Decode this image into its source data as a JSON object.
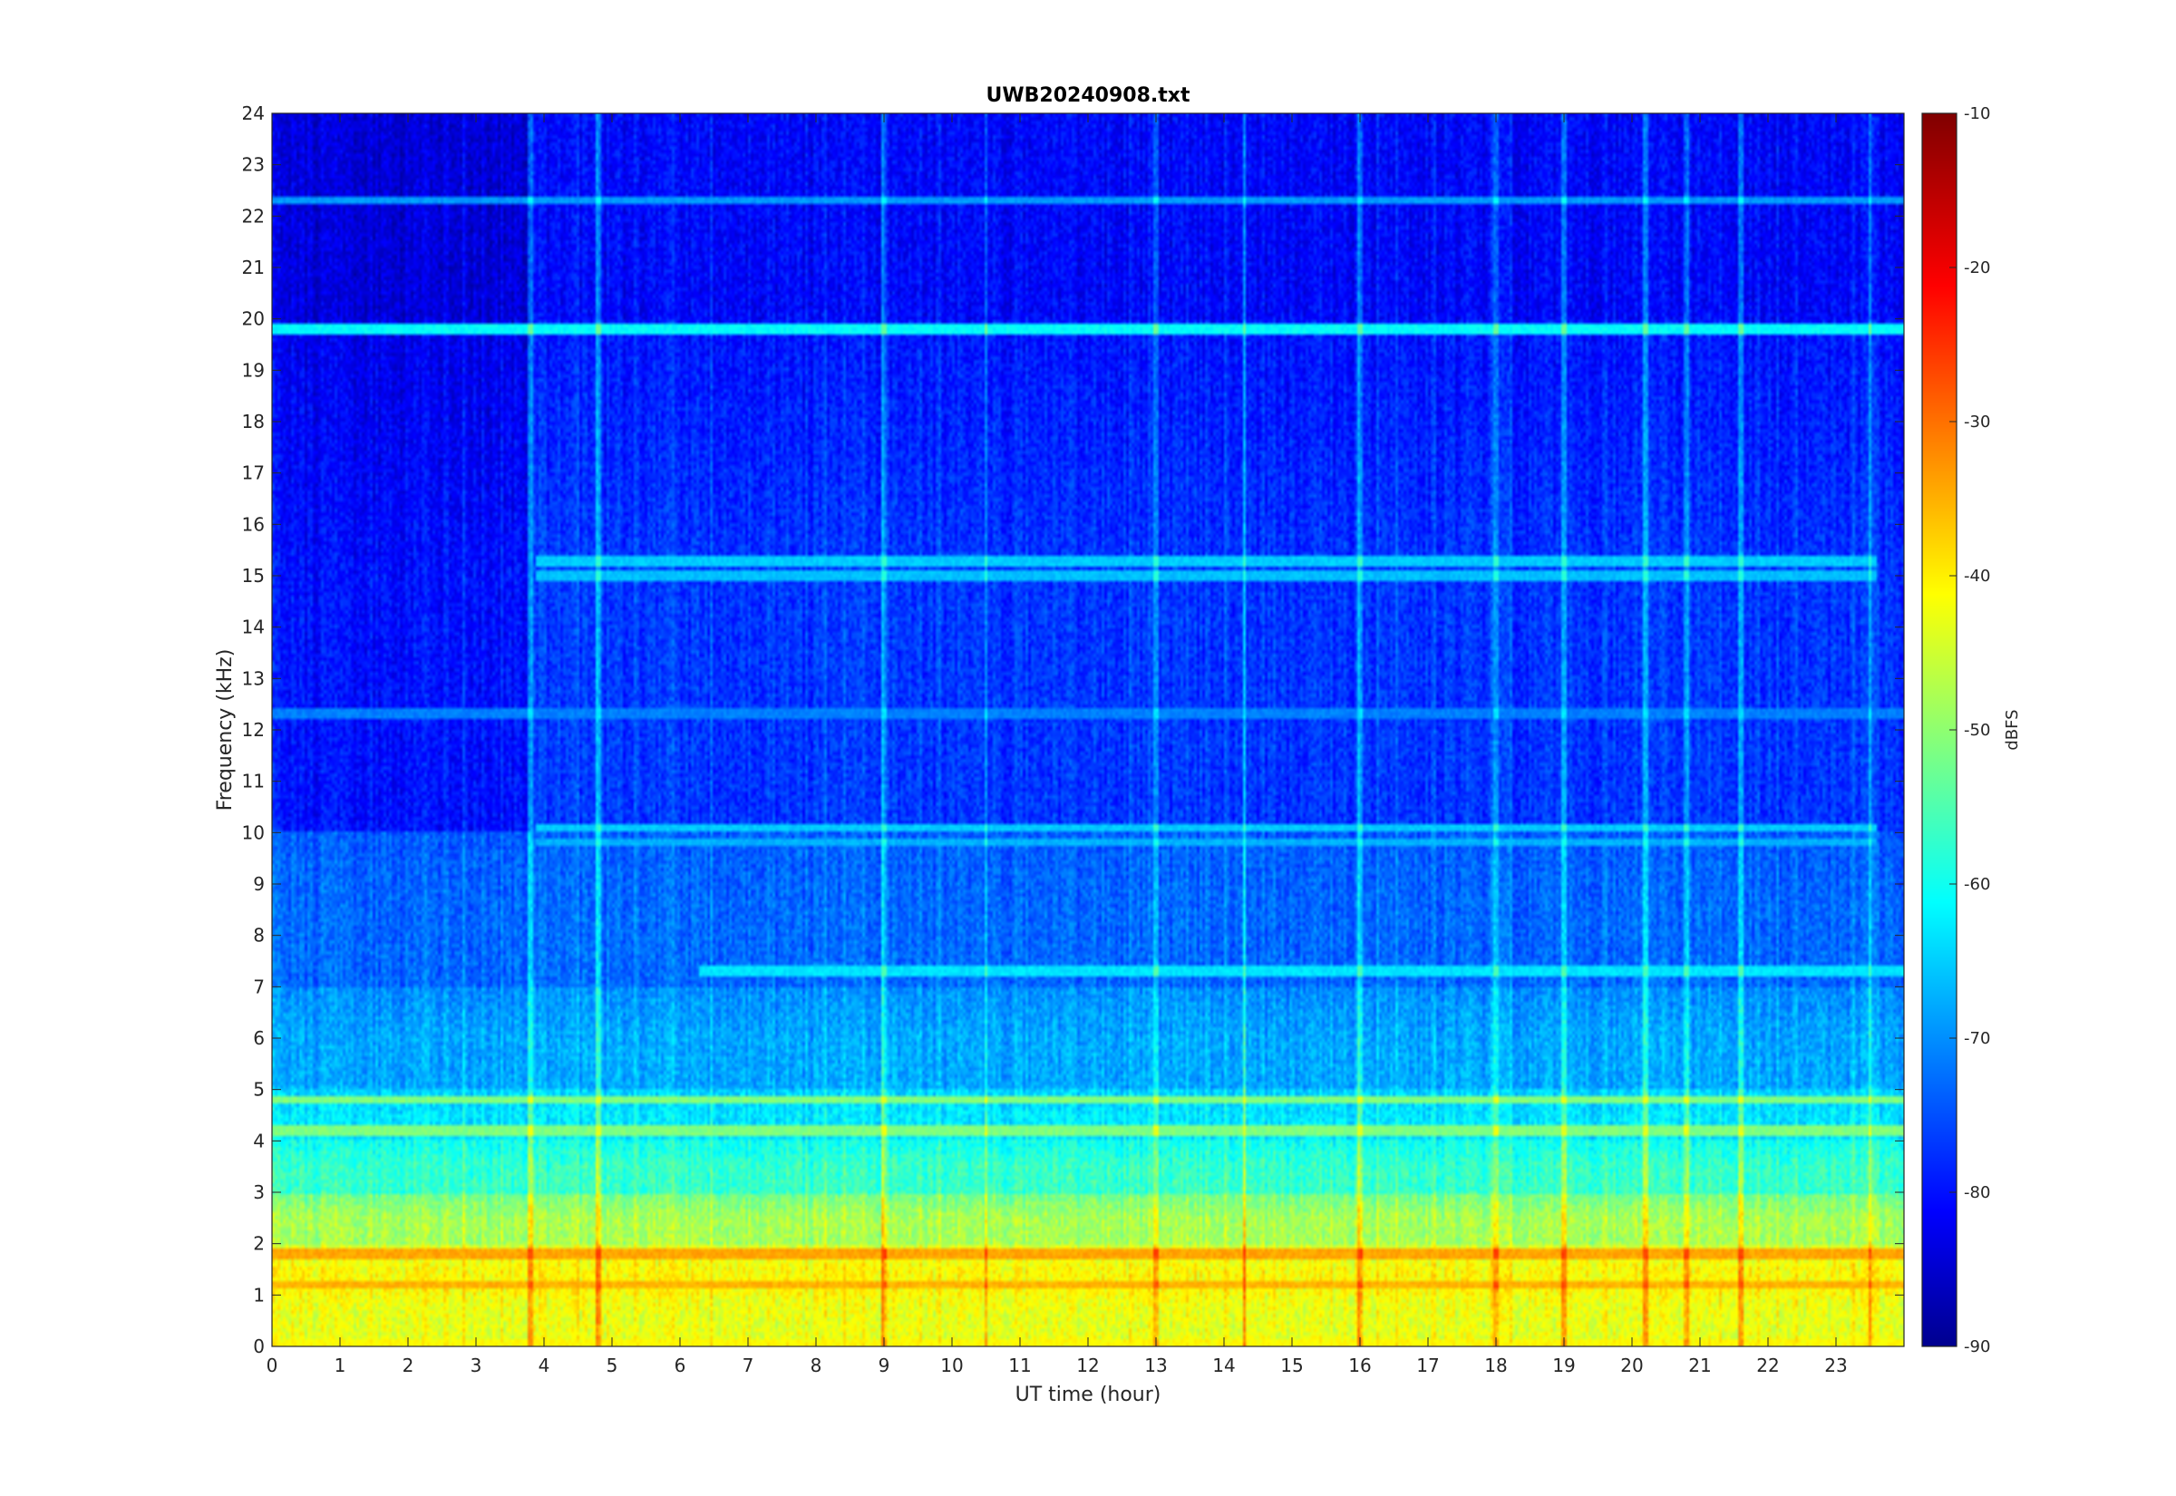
{
  "chart_data": {
    "type": "heatmap",
    "title": "UWB20240908.txt",
    "xlabel": "UT time (hour)",
    "ylabel": "Frequency (kHz)",
    "xlim": [
      0,
      24
    ],
    "ylim": [
      0,
      24
    ],
    "x_ticks": [
      0,
      1,
      2,
      3,
      4,
      5,
      6,
      7,
      8,
      9,
      10,
      11,
      12,
      13,
      14,
      15,
      16,
      17,
      18,
      19,
      20,
      21,
      22,
      23
    ],
    "y_ticks": [
      0,
      1,
      2,
      3,
      4,
      5,
      6,
      7,
      8,
      9,
      10,
      11,
      12,
      13,
      14,
      15,
      16,
      17,
      18,
      19,
      20,
      21,
      22,
      23,
      24
    ],
    "colorbar": {
      "label": "dBFS",
      "range": [
        -90,
        -10
      ],
      "ticks": [
        -90,
        -80,
        -70,
        -60,
        -50,
        -40,
        -30,
        -20,
        -10
      ],
      "colormap": "jet"
    },
    "colormap_colors": [
      "#00008f",
      "#0000ff",
      "#00ffff",
      "#ffff00",
      "#ff0000",
      "#800000"
    ],
    "background_levels_dbfs": [
      {
        "freq_khz": [
          0,
          1
        ],
        "level": -42
      },
      {
        "freq_khz": [
          1,
          2
        ],
        "level": -40
      },
      {
        "freq_khz": [
          2,
          3
        ],
        "level": -47
      },
      {
        "freq_khz": [
          3,
          4
        ],
        "level": -56
      },
      {
        "freq_khz": [
          4,
          5
        ],
        "level": -62
      },
      {
        "freq_khz": [
          5,
          7
        ],
        "level": -67
      },
      {
        "freq_khz": [
          7,
          10
        ],
        "level": -72
      },
      {
        "freq_khz": [
          10,
          20
        ],
        "level": -76
      },
      {
        "freq_khz": [
          20,
          24
        ],
        "level": -80
      }
    ],
    "persistent_lines": [
      {
        "freq_khz": 19.8,
        "level": -60,
        "t_start": 0,
        "t_end": 24
      },
      {
        "freq_khz": 22.3,
        "level": -68,
        "t_start": 0,
        "t_end": 24
      },
      {
        "freq_khz": 15.3,
        "level": -64,
        "t_start": 3.9,
        "t_end": 23.6
      },
      {
        "freq_khz": 15.0,
        "level": -65,
        "t_start": 3.9,
        "t_end": 23.6
      },
      {
        "freq_khz": 10.1,
        "level": -64,
        "t_start": 3.9,
        "t_end": 23.6
      },
      {
        "freq_khz": 9.8,
        "level": -66,
        "t_start": 3.9,
        "t_end": 23.6
      },
      {
        "freq_khz": 12.3,
        "level": -70,
        "t_start": 0,
        "t_end": 24
      },
      {
        "freq_khz": 7.3,
        "level": -62,
        "t_start": 6.3,
        "t_end": 24
      },
      {
        "freq_khz": 4.8,
        "level": -50,
        "t_start": 0,
        "t_end": 24
      },
      {
        "freq_khz": 4.2,
        "level": -50,
        "t_start": 0,
        "t_end": 24
      },
      {
        "freq_khz": 1.8,
        "level": -33,
        "t_start": 0,
        "t_end": 24
      },
      {
        "freq_khz": 1.2,
        "level": -34,
        "t_start": 0,
        "t_end": 24
      },
      {
        "freq_khz": 0.05,
        "level": -40,
        "t_start": 0,
        "t_end": 24
      }
    ],
    "vertical_spikes_hour": [
      3.8,
      4.8,
      9.0,
      10.5,
      13.0,
      14.3,
      16.0,
      18.0,
      19.0,
      20.2,
      20.8,
      21.6,
      23.5
    ]
  }
}
